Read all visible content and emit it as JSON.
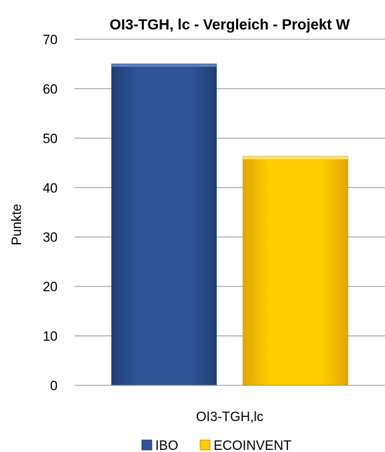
{
  "chart_data": {
    "type": "bar",
    "title": "OI3-TGH, lc - Vergleich - Projekt W",
    "xlabel": "",
    "ylabel": "Punkte",
    "categories": [
      "OI3-TGH,lc"
    ],
    "series": [
      {
        "name": "IBO",
        "values": [
          65
        ],
        "color": "#2F5597"
      },
      {
        "name": "ECOINVENT",
        "values": [
          46.3
        ],
        "color": "#FFCC00"
      }
    ],
    "ylim": [
      0,
      70
    ],
    "yticks": [
      0,
      10,
      20,
      30,
      40,
      50,
      60,
      70
    ],
    "grid": true,
    "legend_position": "bottom"
  }
}
